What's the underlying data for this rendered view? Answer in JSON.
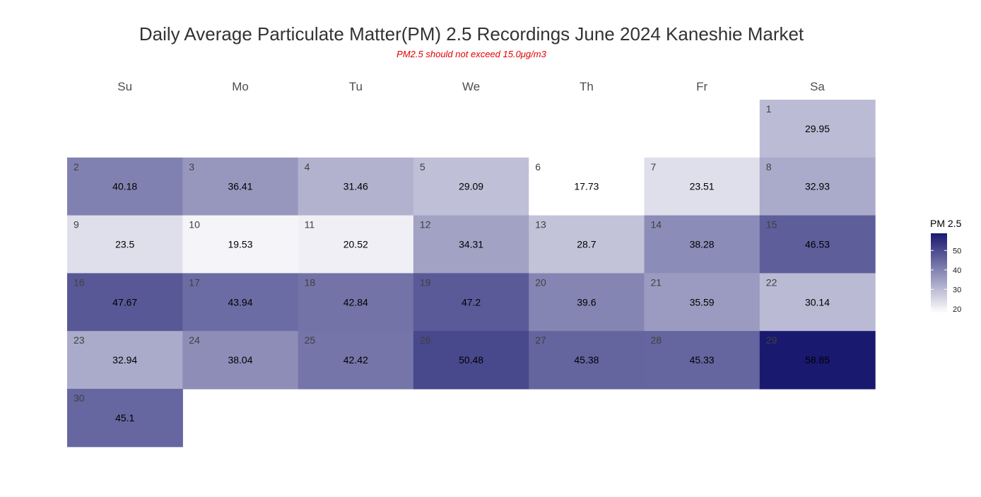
{
  "chart_data": {
    "type": "heatmap",
    "title": "Daily Average Particulate Matter(PM) 2.5 Recordings June 2024 Kaneshie Market",
    "subtitle": "PM2.5 should not exceed 15.0μg/m3",
    "weekdays": [
      "Su",
      "Mo",
      "Tu",
      "We",
      "Th",
      "Fr",
      "Sa"
    ],
    "first_weekday_index": 6,
    "days": [
      {
        "day": 1,
        "value": 29.95
      },
      {
        "day": 2,
        "value": 40.18
      },
      {
        "day": 3,
        "value": 36.41
      },
      {
        "day": 4,
        "value": 31.46
      },
      {
        "day": 5,
        "value": 29.09
      },
      {
        "day": 6,
        "value": 17.73
      },
      {
        "day": 7,
        "value": 23.51
      },
      {
        "day": 8,
        "value": 32.93
      },
      {
        "day": 9,
        "value": 23.5
      },
      {
        "day": 10,
        "value": 19.53
      },
      {
        "day": 11,
        "value": 20.52
      },
      {
        "day": 12,
        "value": 34.31
      },
      {
        "day": 13,
        "value": 28.7
      },
      {
        "day": 14,
        "value": 38.28
      },
      {
        "day": 15,
        "value": 46.53
      },
      {
        "day": 16,
        "value": 47.67
      },
      {
        "day": 17,
        "value": 43.94
      },
      {
        "day": 18,
        "value": 42.84
      },
      {
        "day": 19,
        "value": 47.2
      },
      {
        "day": 20,
        "value": 39.6
      },
      {
        "day": 21,
        "value": 35.59
      },
      {
        "day": 22,
        "value": 30.14
      },
      {
        "day": 23,
        "value": 32.94
      },
      {
        "day": 24,
        "value": 38.04
      },
      {
        "day": 25,
        "value": 42.42
      },
      {
        "day": 26,
        "value": 50.48
      },
      {
        "day": 27,
        "value": 45.38
      },
      {
        "day": 28,
        "value": 45.33
      },
      {
        "day": 29,
        "value": 58.85
      },
      {
        "day": 30,
        "value": 45.1
      }
    ],
    "legend": {
      "title": "PM 2.5",
      "ticks": [
        20,
        30,
        40,
        50
      ],
      "range": [
        17.73,
        58.85
      ],
      "low_color": "#ffffff",
      "high_color": "#191970"
    }
  }
}
